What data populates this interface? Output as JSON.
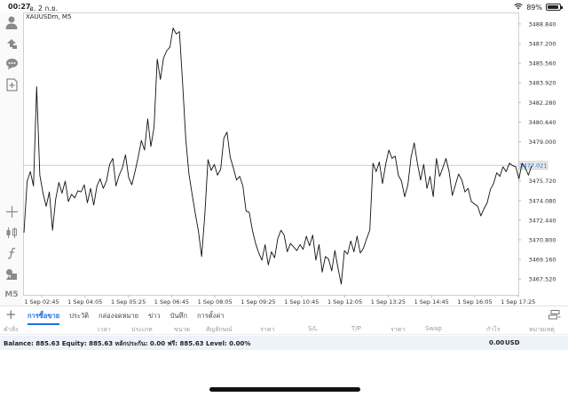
{
  "status_bar": {
    "time": "00:27",
    "date": "อ. 2 ก.ย.",
    "battery_percent": "89%",
    "battery_level": 0.89
  },
  "left_toolbar": {
    "icons": [
      "account-icon",
      "trade-icon",
      "chat-icon",
      "new-order-icon",
      "crosshair-icon",
      "chart-type-icon",
      "indicators-icon",
      "objects-icon"
    ],
    "timeframe": "M5"
  },
  "chart": {
    "symbol_label": "XAUUSDm, M5",
    "colors": {
      "line": "#111111",
      "grid": "#eeeeee",
      "current_price_line": "#cccccc",
      "price_tag_bg": "#e8e8e8"
    }
  },
  "chart_data": {
    "type": "line",
    "title": "XAUUSDm, M5",
    "y_ticks": [
      "3488.840",
      "3487.200",
      "3485.560",
      "3483.920",
      "3482.280",
      "3480.640",
      "3479.000",
      "3475.720",
      "3474.080",
      "3472.440",
      "3470.800",
      "3469.160",
      "3467.520"
    ],
    "x_ticks": [
      "1 Sep 02:45",
      "1 Sep 04:05",
      "1 Sep 05:25",
      "1 Sep 06:45",
      "1 Sep 08:05",
      "1 Sep 09:25",
      "1 Sep 10:45",
      "1 Sep 12:05",
      "1 Sep 13:25",
      "1 Sep 14:45",
      "1 Sep 16:05",
      "1 Sep 17:25"
    ],
    "ylim": [
      3466.2,
      3489.8
    ],
    "current_price": 3477.021,
    "current_price_label": "3477.021",
    "grid": true,
    "series": [
      {
        "values": [
          3471.4,
          3475.7,
          3476.5,
          3475.3,
          3483.6,
          3476.2,
          3474.7,
          3473.6,
          3474.8,
          3471.6,
          3474.2,
          3475.6,
          3474.7,
          3475.7,
          3474.0,
          3474.6,
          3474.3,
          3474.9,
          3474.8,
          3475.4,
          3473.9,
          3475.1,
          3473.7,
          3475.3,
          3475.9,
          3475.1,
          3475.7,
          3477.1,
          3477.6,
          3475.3,
          3476.2,
          3476.8,
          3477.9,
          3476.0,
          3475.4,
          3476.5,
          3477.7,
          3479.1,
          3478.3,
          3480.9,
          3478.6,
          3480.2,
          3485.9,
          3484.2,
          3486.0,
          3486.6,
          3486.9,
          3488.5,
          3488.0,
          3488.2,
          3483.9,
          3479.2,
          3476.3,
          3474.6,
          3473.0,
          3471.5,
          3469.4,
          3472.9,
          3477.5,
          3476.6,
          3477.1,
          3476.2,
          3476.7,
          3479.3,
          3479.8,
          3477.7,
          3476.8,
          3475.8,
          3476.1,
          3475.3,
          3473.2,
          3473.1,
          3471.6,
          3470.5,
          3469.7,
          3469.1,
          3470.4,
          3468.7,
          3469.8,
          3469.3,
          3470.9,
          3471.6,
          3471.2,
          3469.8,
          3470.5,
          3470.2,
          3469.9,
          3470.4,
          3470.0,
          3471.1,
          3470.3,
          3471.2,
          3469.1,
          3470.4,
          3468.1,
          3469.4,
          3469.2,
          3468.2,
          3469.9,
          3468.4,
          3467.1,
          3469.9,
          3469.6,
          3470.7,
          3469.8,
          3471.1,
          3469.7,
          3470.1,
          3470.9,
          3471.6,
          3477.2,
          3476.5,
          3477.3,
          3475.5,
          3477.1,
          3478.3,
          3477.6,
          3477.8,
          3476.2,
          3475.7,
          3474.4,
          3475.4,
          3477.7,
          3478.9,
          3477.2,
          3475.8,
          3477.1,
          3475.1,
          3476.1,
          3474.4,
          3477.6,
          3476.1,
          3476.8,
          3477.6,
          3476.5,
          3474.5,
          3475.4,
          3476.3,
          3475.8,
          3474.8,
          3475.1,
          3474.0,
          3473.8,
          3473.6,
          3472.8,
          3473.4,
          3473.9,
          3475.0,
          3475.5,
          3476.4,
          3476.1,
          3476.9,
          3476.5,
          3477.2,
          3477.0,
          3476.9,
          3475.9,
          3477.2,
          3476.8,
          3476.2,
          3477.0
        ]
      }
    ]
  },
  "tabs": [
    {
      "label": "การซื้อขาย",
      "active": true
    },
    {
      "label": "ประวัติ",
      "active": false
    },
    {
      "label": "กล่องจดหมาย",
      "active": false
    },
    {
      "label": "ข่าว",
      "active": false
    },
    {
      "label": "บันทึก",
      "active": false
    },
    {
      "label": "การตั้งค่า",
      "active": false
    }
  ],
  "columns": [
    "คำสั่ง",
    "เวลา",
    "ประเภท",
    "ขนาด",
    "สัญลักษณ์",
    "ราคา",
    "S/L",
    "T/P",
    "ราคา",
    "Swap",
    "กำไร",
    "หมายเหตุ"
  ],
  "balance": {
    "text": "Balance: 885.63 Equity: 885.63 หลักประกัน: 0.00 ฟรี: 885.63 Level: 0.00%",
    "total": "0.00",
    "currency": "USD"
  }
}
